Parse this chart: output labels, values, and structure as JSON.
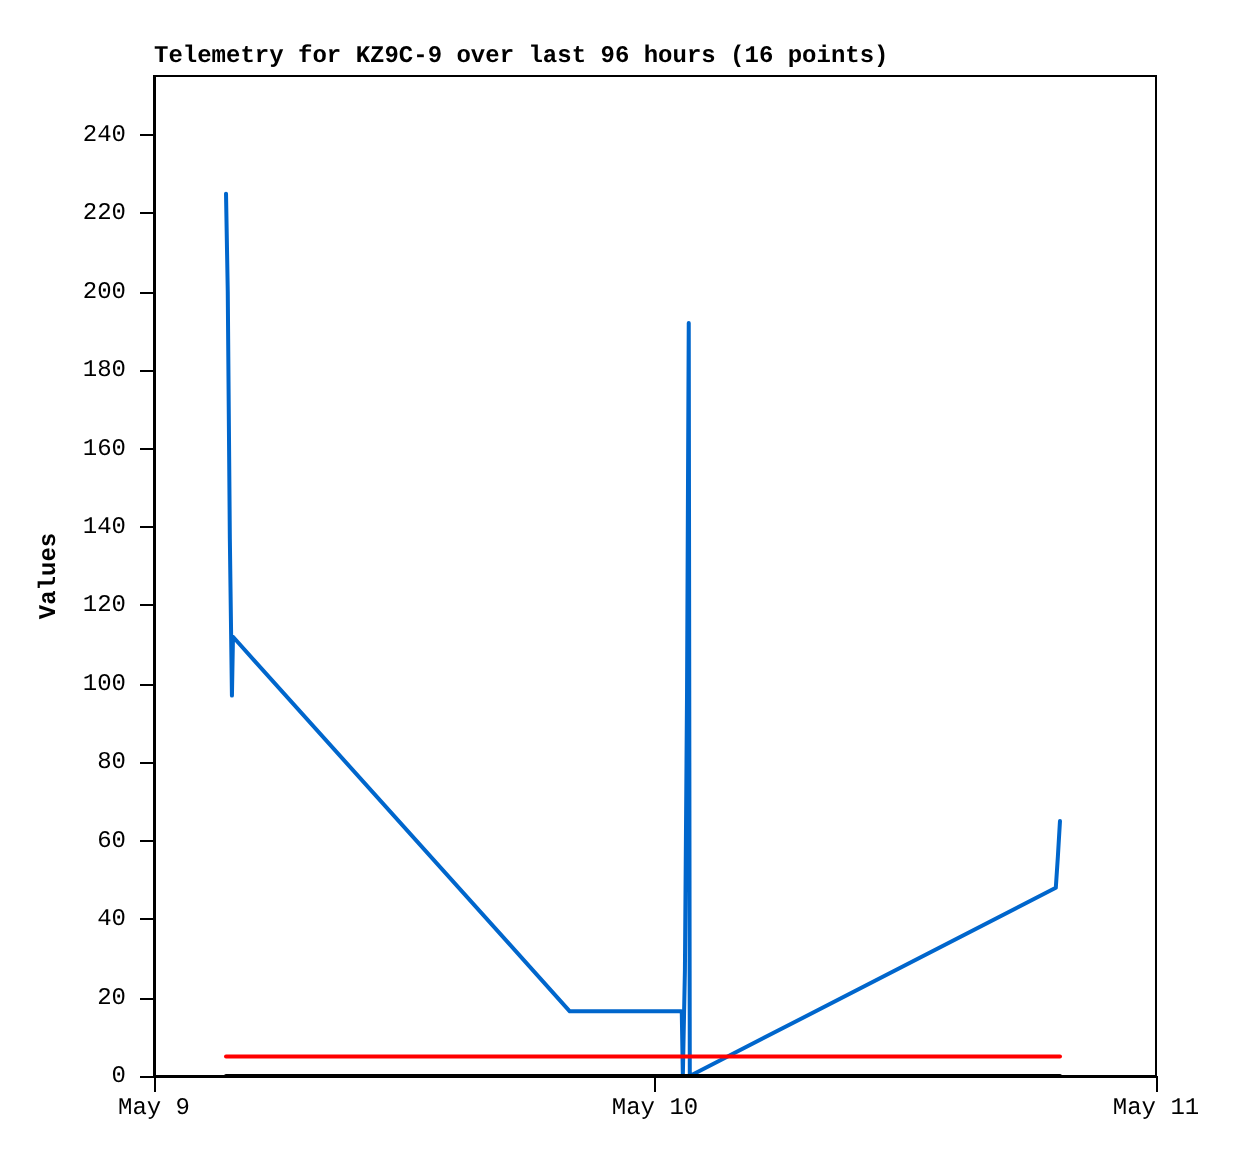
{
  "chart_data": {
    "type": "line",
    "title": "Telemetry for KZ9C-9 over last 96 hours (16 points)",
    "ylabel": "Values",
    "xlim": [
      "--05-09",
      "--05-11"
    ],
    "xticks": [
      {
        "value": "--05-09",
        "label": "May 9"
      },
      {
        "value": "--05-10",
        "label": "May 10"
      },
      {
        "value": "--05-11",
        "label": "May 11"
      }
    ],
    "ylim": [
      0,
      255
    ],
    "yticks": [
      0,
      20,
      40,
      60,
      80,
      100,
      120,
      140,
      160,
      180,
      200,
      220,
      240
    ],
    "grid": false,
    "marker": "none",
    "line_style": "solid",
    "series": [
      {
        "color": "#0066cc",
        "x": [
          "--05-09T03:27",
          "--05-09T03:32",
          "--05-09T03:38",
          "--05-09T03:44",
          "--05-09T03:47",
          "--05-09T19:55",
          "--05-10T01:15",
          "--05-10T01:17",
          "--05-10T01:20",
          "--05-10T01:26",
          "--05-10T01:32",
          "--05-10T01:37",
          "--05-10T01:40",
          "--05-10T19:12",
          "--05-10T19:18",
          "--05-10T19:24"
        ],
        "values": [
          225,
          200,
          137,
          97,
          112,
          16.5,
          16.5,
          16,
          0,
          27,
          97,
          192,
          0,
          48,
          56,
          65
        ]
      },
      {
        "color": "#ff0000",
        "x": [
          "--05-09T03:27",
          "--05-10T19:24"
        ],
        "values": [
          5,
          5
        ]
      },
      {
        "color": "#000000",
        "x": [
          "--05-09T03:27",
          "--05-10T19:24"
        ],
        "values": [
          0,
          0
        ]
      }
    ]
  }
}
